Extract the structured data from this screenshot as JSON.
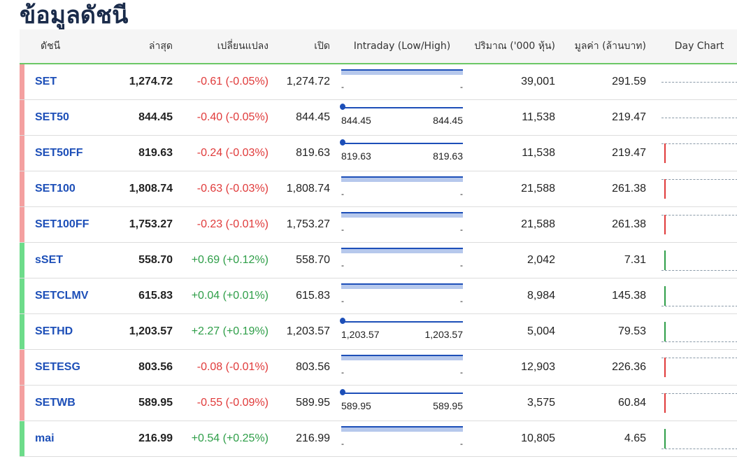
{
  "title": "ข้อมูลดัชนี",
  "headers": [
    "ดัชนี",
    "ล่าสุด",
    "เปลี่ยนแปลง",
    "เปิด",
    "Intraday (Low/High)",
    "ปริมาณ ('000 หุ้น)",
    "มูลค่า (ล้านบาท)",
    "Day Chart"
  ],
  "colors": {
    "up": "#2e9e48",
    "down": "#e03a3a",
    "bar_up": "#6ddc8a",
    "bar_down": "#f4a0a0",
    "link": "#1d4fb8"
  },
  "rows": [
    {
      "name": "SET",
      "last": "1,274.72",
      "change": "-0.61 (-0.05%)",
      "dir": "down",
      "open": "1,274.72",
      "low": "-",
      "high": "-",
      "vol": "39,001",
      "val": "291.59",
      "chart": "flat"
    },
    {
      "name": "SET50",
      "last": "844.45",
      "change": "-0.40 (-0.05%)",
      "dir": "down",
      "open": "844.45",
      "low": "844.45",
      "high": "844.45",
      "vol": "11,538",
      "val": "219.47",
      "chart": "flat"
    },
    {
      "name": "SET50FF",
      "last": "819.63",
      "change": "-0.24 (-0.03%)",
      "dir": "down",
      "open": "819.63",
      "low": "819.63",
      "high": "819.63",
      "vol": "11,538",
      "val": "219.47",
      "chart": "down"
    },
    {
      "name": "SET100",
      "last": "1,808.74",
      "change": "-0.63 (-0.03%)",
      "dir": "down",
      "open": "1,808.74",
      "low": "-",
      "high": "-",
      "vol": "21,588",
      "val": "261.38",
      "chart": "down"
    },
    {
      "name": "SET100FF",
      "last": "1,753.27",
      "change": "-0.23 (-0.01%)",
      "dir": "down",
      "open": "1,753.27",
      "low": "-",
      "high": "-",
      "vol": "21,588",
      "val": "261.38",
      "chart": "down"
    },
    {
      "name": "sSET",
      "last": "558.70",
      "change": "+0.69 (+0.12%)",
      "dir": "up",
      "open": "558.70",
      "low": "-",
      "high": "-",
      "vol": "2,042",
      "val": "7.31",
      "chart": "up"
    },
    {
      "name": "SETCLMV",
      "last": "615.83",
      "change": "+0.04 (+0.01%)",
      "dir": "up",
      "open": "615.83",
      "low": "-",
      "high": "-",
      "vol": "8,984",
      "val": "145.38",
      "chart": "up"
    },
    {
      "name": "SETHD",
      "last": "1,203.57",
      "change": "+2.27 (+0.19%)",
      "dir": "up",
      "open": "1,203.57",
      "low": "1,203.57",
      "high": "1,203.57",
      "vol": "5,004",
      "val": "79.53",
      "chart": "up"
    },
    {
      "name": "SETESG",
      "last": "803.56",
      "change": "-0.08 (-0.01%)",
      "dir": "down",
      "open": "803.56",
      "low": "-",
      "high": "-",
      "vol": "12,903",
      "val": "226.36",
      "chart": "down"
    },
    {
      "name": "SETWB",
      "last": "589.95",
      "change": "-0.55 (-0.09%)",
      "dir": "down",
      "open": "589.95",
      "low": "589.95",
      "high": "589.95",
      "vol": "3,575",
      "val": "60.84",
      "chart": "down"
    },
    {
      "name": "mai",
      "last": "216.99",
      "change": "+0.54 (+0.25%)",
      "dir": "up",
      "open": "216.99",
      "low": "-",
      "high": "-",
      "vol": "10,805",
      "val": "4.65",
      "chart": "up"
    }
  ]
}
